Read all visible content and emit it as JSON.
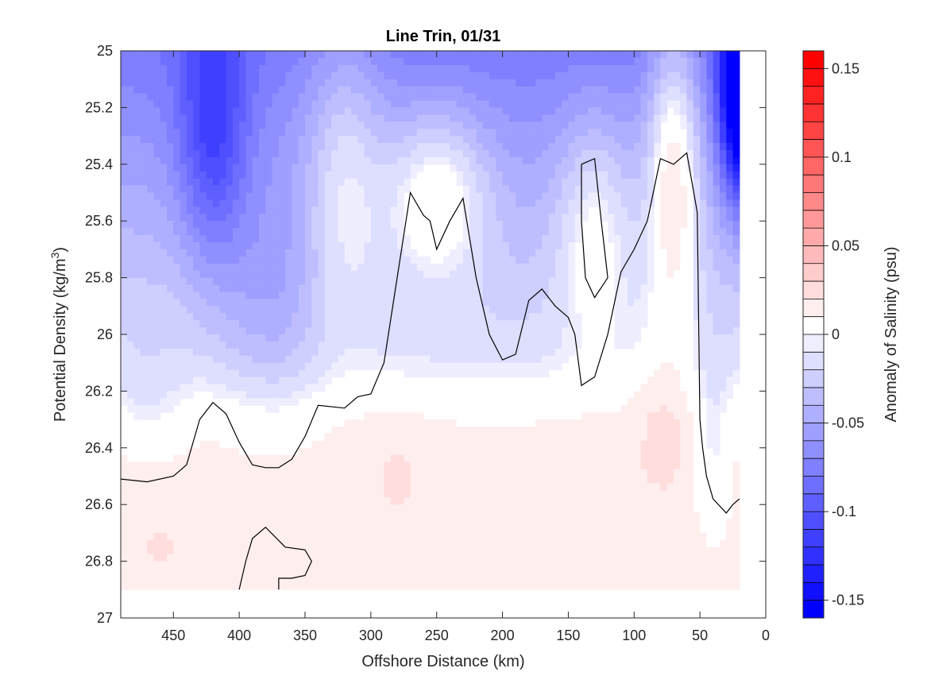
{
  "chart_data": {
    "type": "contour",
    "title": "Line Trin, 01/31",
    "xlabel": "Offshore Distance (km)",
    "ylabel_main": "Potential Density (kg/m",
    "ylabel_sup": "3",
    "ylabel_close": ")",
    "xlim": [
      490,
      0
    ],
    "ylim": [
      25,
      27
    ],
    "y_reversed": true,
    "x_reversed": true,
    "x_ticks": [
      "450",
      "400",
      "350",
      "300",
      "250",
      "200",
      "150",
      "100",
      "50",
      "0"
    ],
    "x_tick_values": [
      450,
      400,
      350,
      300,
      250,
      200,
      150,
      100,
      50,
      0
    ],
    "y_ticks": [
      "25",
      "25.2",
      "25.4",
      "25.6",
      "25.8",
      "26",
      "26.2",
      "26.4",
      "26.6",
      "26.8",
      "27"
    ],
    "y_tick_values": [
      25,
      25.2,
      25.4,
      25.6,
      25.8,
      26,
      26.2,
      26.4,
      26.6,
      26.8,
      27
    ],
    "colorbar": {
      "label": "Anomaly of Salinity (psu)",
      "range": [
        -0.16,
        0.16
      ],
      "ticks": [
        "0.15",
        "0.1",
        "0.05",
        "0",
        "-0.05",
        "-0.1",
        "-0.15"
      ],
      "tick_values": [
        0.15,
        0.1,
        0.05,
        0,
        -0.05,
        -0.1,
        -0.15
      ],
      "levels": 32,
      "colormap": [
        "#0000ff",
        "#ffffff",
        "#ff0000"
      ]
    },
    "data_extent_x": [
      490,
      20
    ],
    "data_extent_y": [
      25,
      26.9
    ],
    "zero_contour": [
      {
        "x": 490,
        "y": 26.51
      },
      {
        "x": 470,
        "y": 26.52
      },
      {
        "x": 450,
        "y": 26.5
      },
      {
        "x": 440,
        "y": 26.46
      },
      {
        "x": 430,
        "y": 26.3
      },
      {
        "x": 420,
        "y": 26.24
      },
      {
        "x": 410,
        "y": 26.28
      },
      {
        "x": 400,
        "y": 26.38
      },
      {
        "x": 390,
        "y": 26.46
      },
      {
        "x": 380,
        "y": 26.47
      },
      {
        "x": 370,
        "y": 26.47
      },
      {
        "x": 360,
        "y": 26.44
      },
      {
        "x": 350,
        "y": 26.36
      },
      {
        "x": 340,
        "y": 26.25
      },
      {
        "x": 320,
        "y": 26.26
      },
      {
        "x": 310,
        "y": 26.22
      },
      {
        "x": 300,
        "y": 26.21
      },
      {
        "x": 290,
        "y": 26.1
      },
      {
        "x": 280,
        "y": 25.8
      },
      {
        "x": 270,
        "y": 25.5
      },
      {
        "x": 260,
        "y": 25.58
      },
      {
        "x": 255,
        "y": 25.6
      },
      {
        "x": 250,
        "y": 25.7
      },
      {
        "x": 240,
        "y": 25.6
      },
      {
        "x": 235,
        "y": 25.56
      },
      {
        "x": 230,
        "y": 25.52
      },
      {
        "x": 220,
        "y": 25.8
      },
      {
        "x": 210,
        "y": 26.0
      },
      {
        "x": 200,
        "y": 26.09
      },
      {
        "x": 190,
        "y": 26.07
      },
      {
        "x": 180,
        "y": 25.88
      },
      {
        "x": 170,
        "y": 25.84
      },
      {
        "x": 160,
        "y": 25.9
      },
      {
        "x": 150,
        "y": 25.94
      },
      {
        "x": 145,
        "y": 26.0
      },
      {
        "x": 140,
        "y": 26.18
      },
      {
        "x": 130,
        "y": 26.15
      },
      {
        "x": 120,
        "y": 26.0
      },
      {
        "x": 110,
        "y": 25.78
      },
      {
        "x": 100,
        "y": 25.7
      },
      {
        "x": 90,
        "y": 25.6
      },
      {
        "x": 80,
        "y": 25.38
      },
      {
        "x": 70,
        "y": 25.4
      },
      {
        "x": 60,
        "y": 25.36
      },
      {
        "x": 52,
        "y": 25.57
      },
      {
        "x": 50,
        "y": 26.3
      },
      {
        "x": 48,
        "y": 26.4
      },
      {
        "x": 45,
        "y": 26.5
      },
      {
        "x": 40,
        "y": 26.58
      },
      {
        "x": 30,
        "y": 26.63
      },
      {
        "x": 25,
        "y": 26.6
      },
      {
        "x": 20,
        "y": 26.58
      }
    ],
    "zero_contour_loops": [
      [
        {
          "x": 140,
          "y": 25.4
        },
        {
          "x": 130,
          "y": 25.38
        },
        {
          "x": 125,
          "y": 25.6
        },
        {
          "x": 120,
          "y": 25.8
        },
        {
          "x": 130,
          "y": 25.87
        },
        {
          "x": 137,
          "y": 25.8
        },
        {
          "x": 140,
          "y": 25.6
        },
        {
          "x": 140,
          "y": 25.4
        }
      ],
      [
        {
          "x": 400,
          "y": 26.9
        },
        {
          "x": 395,
          "y": 26.8
        },
        {
          "x": 390,
          "y": 26.72
        },
        {
          "x": 380,
          "y": 26.68
        },
        {
          "x": 365,
          "y": 26.75
        },
        {
          "x": 350,
          "y": 26.76
        },
        {
          "x": 345,
          "y": 26.8
        },
        {
          "x": 350,
          "y": 26.85
        },
        {
          "x": 360,
          "y": 26.86
        },
        {
          "x": 370,
          "y": 26.86
        },
        {
          "x": 370,
          "y": 26.9
        }
      ]
    ]
  }
}
